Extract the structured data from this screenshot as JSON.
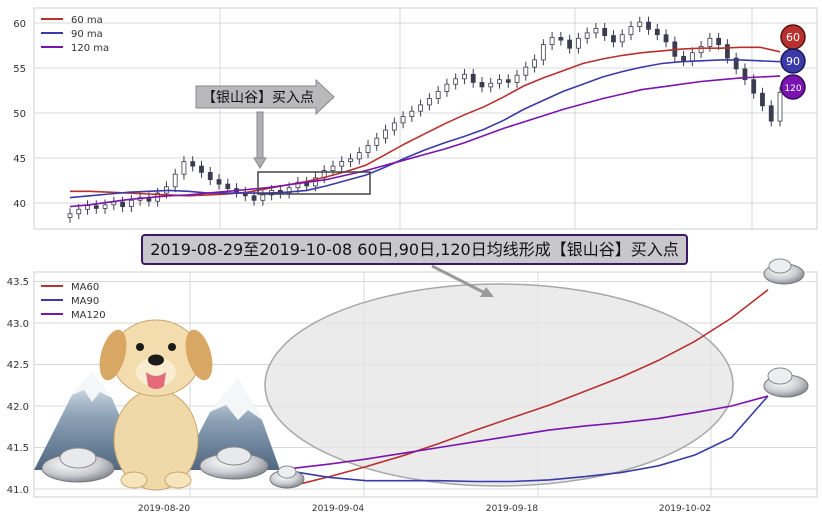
{
  "colors": {
    "ma60": "#b8312f",
    "ma90": "#3a3aa8",
    "ma120": "#7a14b0",
    "grid": "#d9d9d9",
    "candle": "#3c3c50"
  },
  "top_chart": {
    "legend": [
      "60 ma",
      "90 ma",
      "120 ma"
    ],
    "y_ticks": [
      "60",
      "55",
      "50",
      "45",
      "40"
    ],
    "callout_text": "【银山谷】买入点",
    "badges": [
      "60",
      "90",
      "120"
    ]
  },
  "caption": "2019-08-29至2019-10-08 60日,90日,120日均线形成【银山谷】买入点",
  "bottom_chart": {
    "legend": [
      "MA60",
      "MA90",
      "MA120"
    ],
    "y_ticks": [
      "43.5",
      "43.0",
      "42.5",
      "42.0",
      "41.5",
      "41.0"
    ],
    "x_ticks": [
      "2019-08-20",
      "2019-09-04",
      "2019-09-18",
      "2019-10-02"
    ]
  },
  "chart_data": [
    {
      "type": "candlestick",
      "title": "",
      "ylim": [
        37.5,
        62
      ],
      "grid": true,
      "legend_position": "top-left",
      "price": [
        38.8,
        39.3,
        39.7,
        39.4,
        39.8,
        40.1,
        39.6,
        40.3,
        40.6,
        40.2,
        41.1,
        41.8,
        43.2,
        44.6,
        44.1,
        43.4,
        42.6,
        42.1,
        41.6,
        41.2,
        40.8,
        40.3,
        40.9,
        41.4,
        41.1,
        41.7,
        42.3,
        41.9,
        42.8,
        43.6,
        44.1,
        44.6,
        44.9,
        45.6,
        46.4,
        47.2,
        48.1,
        48.9,
        49.6,
        50.2,
        50.9,
        51.6,
        52.4,
        53.2,
        53.8,
        54.3,
        53.4,
        52.9,
        53.3,
        53.7,
        53.4,
        54.2,
        55.1,
        55.9,
        57.6,
        58.4,
        58.1,
        57.2,
        58.3,
        58.9,
        59.4,
        58.6,
        57.9,
        58.7,
        59.6,
        60.1,
        59.3,
        58.7,
        57.9,
        56.3,
        55.8,
        56.7,
        57.4,
        58.3,
        57.6,
        56.1,
        54.9,
        53.7,
        52.2,
        50.8,
        49.1,
        52.3
      ],
      "series": [
        {
          "name": "60 ma",
          "values": [
            41.3,
            41.3,
            41.2,
            41.1,
            41.0,
            40.9,
            40.8,
            40.9,
            41.0,
            41.2,
            41.6,
            42.0,
            42.4,
            42.9,
            43.5,
            44.2,
            45.4,
            46.6,
            47.7,
            48.8,
            49.8,
            50.7,
            51.8,
            53.0,
            53.9,
            54.7,
            55.5,
            56.0,
            56.4,
            56.7,
            56.9,
            57.1,
            57.2,
            57.2,
            57.3,
            57.3,
            56.8
          ]
        },
        {
          "name": "90 ma",
          "values": [
            40.6,
            40.8,
            41.0,
            41.2,
            41.3,
            41.4,
            41.3,
            41.1,
            41.1,
            41.1,
            41.1,
            41.2,
            41.4,
            41.9,
            42.5,
            43.1,
            44.0,
            45.0,
            45.9,
            46.7,
            47.4,
            48.2,
            49.2,
            50.4,
            51.4,
            52.4,
            53.2,
            54.0,
            54.6,
            55.1,
            55.5,
            55.7,
            55.8,
            55.9,
            55.9,
            55.8,
            55.7
          ]
        },
        {
          "name": "120 ma",
          "values": [
            39.6,
            39.8,
            40.1,
            40.4,
            40.6,
            40.8,
            40.9,
            41.1,
            41.3,
            41.5,
            41.7,
            42.0,
            42.3,
            42.6,
            43.1,
            43.6,
            44.2,
            44.8,
            45.4,
            46.0,
            46.7,
            47.5,
            48.3,
            49.0,
            49.7,
            50.4,
            51.0,
            51.6,
            52.1,
            52.6,
            52.9,
            53.2,
            53.5,
            53.7,
            53.9,
            54.0,
            54.1
          ]
        }
      ]
    },
    {
      "type": "line",
      "title": "",
      "x": [
        "2019-08-29",
        "2019-09-01",
        "2019-09-04",
        "2019-09-07",
        "2019-09-10",
        "2019-09-13",
        "2019-09-16",
        "2019-09-19",
        "2019-09-22",
        "2019-09-25",
        "2019-09-28",
        "2019-10-01",
        "2019-10-04",
        "2019-10-08"
      ],
      "x_ticks": [
        "2019-08-20",
        "2019-09-04",
        "2019-09-18",
        "2019-10-02"
      ],
      "ylim": [
        40.9,
        43.56
      ],
      "grid": true,
      "legend_position": "top-left",
      "series": [
        {
          "name": "MA60",
          "values": [
            41.04,
            41.15,
            41.27,
            41.4,
            41.55,
            41.71,
            41.86,
            42.01,
            42.18,
            42.35,
            42.55,
            42.78,
            43.06,
            43.4
          ]
        },
        {
          "name": "MA90",
          "values": [
            41.21,
            41.14,
            41.1,
            41.1,
            41.1,
            41.09,
            41.09,
            41.11,
            41.15,
            41.2,
            41.28,
            41.41,
            41.62,
            42.12
          ]
        },
        {
          "name": "MA120",
          "values": [
            41.25,
            41.3,
            41.36,
            41.43,
            41.5,
            41.57,
            41.64,
            41.71,
            41.76,
            41.8,
            41.85,
            41.92,
            42.0,
            42.12
          ]
        }
      ]
    }
  ]
}
